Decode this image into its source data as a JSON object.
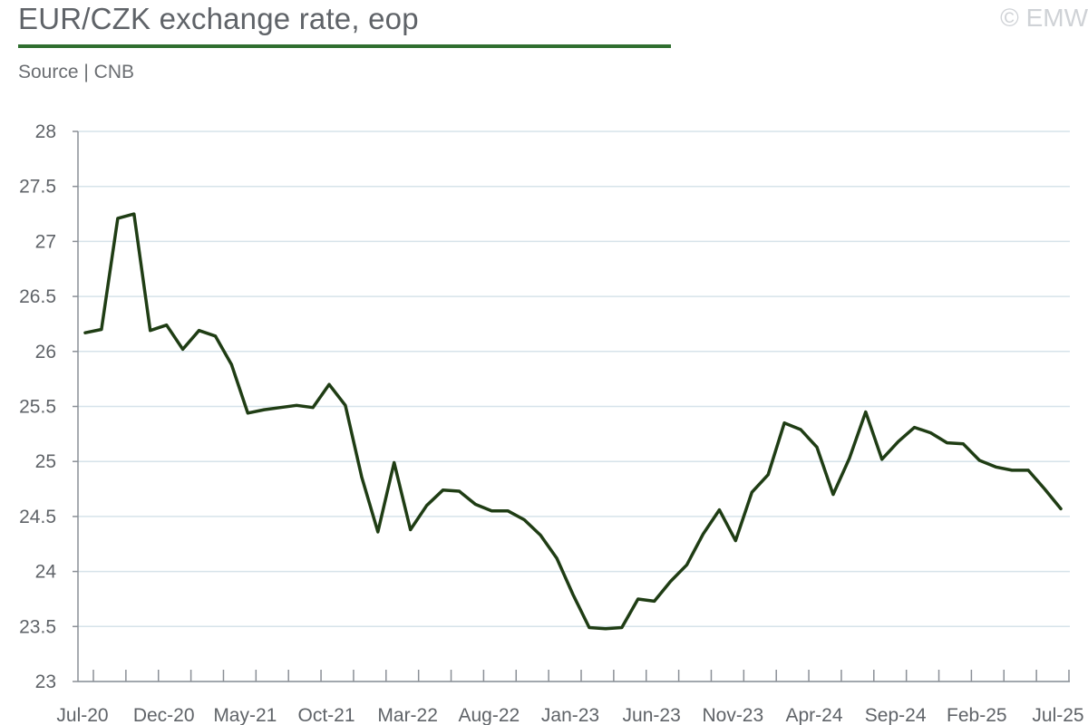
{
  "header": {
    "title": "EUR/CZK exchange rate, eop",
    "source": "Source | CNB",
    "copyright": "© EMW"
  },
  "colors": {
    "line": "#1f3d14",
    "title_rule": "#2f6e2f",
    "grid": "#d6e3ea",
    "axis": "#8a8f96"
  },
  "chart_data": {
    "type": "line",
    "title": "EUR/CZK exchange rate, eop",
    "ylim": [
      23,
      28
    ],
    "yticks": [
      "23",
      "23.5",
      "24",
      "24.5",
      "25",
      "25.5",
      "26",
      "26.5",
      "27",
      "27.5",
      "28"
    ],
    "xtick_labels": [
      "Jul-20",
      "Dec-20",
      "May-21",
      "Oct-21",
      "Mar-22",
      "Aug-22",
      "Jan-23",
      "Jun-23",
      "Nov-23",
      "Apr-24",
      "Sep-24",
      "Feb-25",
      "Jul-25"
    ],
    "grid": true,
    "legend": "none",
    "series": [
      {
        "x": [
          "Jul-20",
          "Aug-20",
          "Sep-20",
          "Oct-20",
          "Nov-20",
          "Dec-20",
          "Jan-21",
          "Feb-21",
          "Mar-21",
          "Apr-21",
          "May-21",
          "Jun-21",
          "Jul-21",
          "Aug-21",
          "Sep-21",
          "Oct-21",
          "Nov-21",
          "Dec-21",
          "Jan-22",
          "Feb-22",
          "Mar-22",
          "Apr-22",
          "May-22",
          "Jun-22",
          "Jul-22",
          "Aug-22",
          "Sep-22",
          "Oct-22",
          "Nov-22",
          "Dec-22",
          "Jan-23",
          "Feb-23",
          "Mar-23",
          "Apr-23",
          "May-23",
          "Jun-23",
          "Jul-23",
          "Aug-23",
          "Sep-23",
          "Oct-23",
          "Nov-23",
          "Dec-23",
          "Jan-24",
          "Feb-24",
          "Mar-24",
          "Apr-24",
          "May-24",
          "Jun-24",
          "Jul-24",
          "Aug-24",
          "Sep-24",
          "Oct-24",
          "Nov-24",
          "Dec-24",
          "Jan-25",
          "Feb-25",
          "Mar-25",
          "Apr-25",
          "May-25",
          "Jun-25",
          "Jul-25"
        ],
        "values": [
          26.17,
          26.2,
          27.21,
          27.25,
          26.19,
          26.24,
          26.02,
          26.19,
          26.14,
          25.88,
          25.44,
          25.47,
          25.49,
          25.51,
          25.49,
          25.7,
          25.51,
          24.86,
          24.36,
          24.99,
          24.38,
          24.6,
          24.74,
          24.73,
          24.61,
          24.55,
          24.55,
          24.47,
          24.33,
          24.12,
          23.79,
          23.49,
          23.48,
          23.49,
          23.75,
          23.73,
          23.91,
          24.06,
          24.34,
          24.56,
          24.28,
          24.72,
          24.88,
          25.35,
          25.29,
          25.13,
          24.7,
          25.03,
          25.45,
          25.02,
          25.18,
          25.31,
          25.26,
          25.17,
          25.16,
          25.01,
          24.95,
          24.92,
          24.92,
          24.75,
          24.57
        ]
      }
    ]
  }
}
